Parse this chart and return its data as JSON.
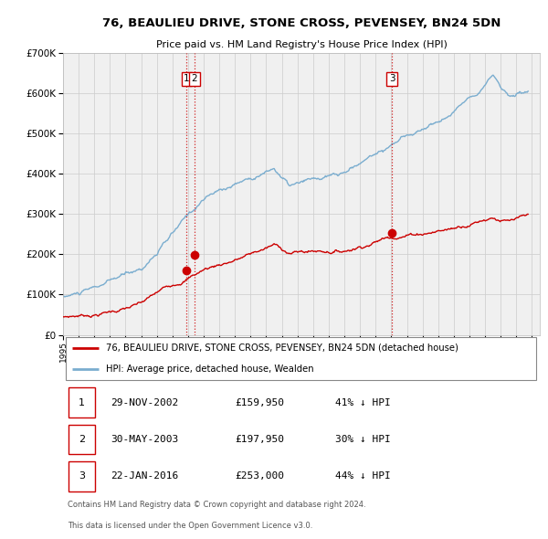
{
  "title": "76, BEAULIEU DRIVE, STONE CROSS, PEVENSEY, BN24 5DN",
  "subtitle": "Price paid vs. HM Land Registry's House Price Index (HPI)",
  "legend_label_red": "76, BEAULIEU DRIVE, STONE CROSS, PEVENSEY, BN24 5DN (detached house)",
  "legend_label_blue": "HPI: Average price, detached house, Wealden",
  "footer_line1": "Contains HM Land Registry data © Crown copyright and database right 2024.",
  "footer_line2": "This data is licensed under the Open Government Licence v3.0.",
  "transactions": [
    {
      "num": 1,
      "date": "29-NOV-2002",
      "price": "£159,950",
      "hpi": "41% ↓ HPI",
      "year": 2002.917
    },
    {
      "num": 2,
      "date": "30-MAY-2003",
      "price": "£197,950",
      "hpi": "30% ↓ HPI",
      "year": 2003.413
    },
    {
      "num": 3,
      "date": "22-JAN-2016",
      "price": "£253,000",
      "hpi": "44% ↓ HPI",
      "year": 2016.055
    }
  ],
  "transaction_prices": [
    159950,
    197950,
    253000
  ],
  "ylim": [
    0,
    700000
  ],
  "yticks": [
    0,
    100000,
    200000,
    300000,
    400000,
    500000,
    600000,
    700000
  ],
  "xlim_start": 1995.0,
  "xlim_end": 2025.5,
  "red_color": "#cc0000",
  "blue_color": "#7aadcf",
  "vline_color": "#cc0000",
  "grid_color": "#cccccc",
  "background_color": "#ffffff",
  "plot_bg_color": "#f0f0f0"
}
